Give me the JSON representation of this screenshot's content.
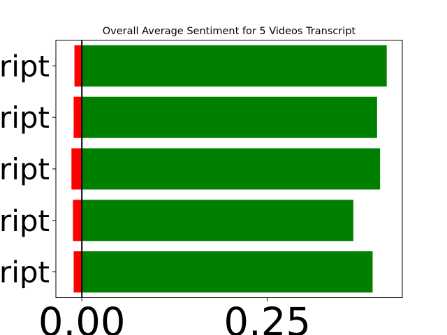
{
  "chart_data": {
    "type": "bar",
    "orientation": "horizontal",
    "title": "Overall Average Sentiment for 5 Videos Transcript",
    "xlabel": "",
    "ylabel": "",
    "categories": [
      "ript",
      "ript",
      "ript",
      "ript",
      "ript"
    ],
    "series": [
      {
        "color": "#ff0000",
        "values": [
          -0.011,
          -0.012,
          -0.014,
          -0.011,
          -0.01
        ]
      },
      {
        "color": "#008000",
        "values": [
          0.392,
          0.366,
          0.402,
          0.398,
          0.411
        ]
      }
    ],
    "xticks": [
      0.0,
      0.25
    ],
    "xtick_labels": [
      "0.00",
      "0.25"
    ],
    "xlim": [
      -0.035,
      0.432
    ],
    "zero_line": true,
    "grid": false,
    "legend": "none"
  }
}
